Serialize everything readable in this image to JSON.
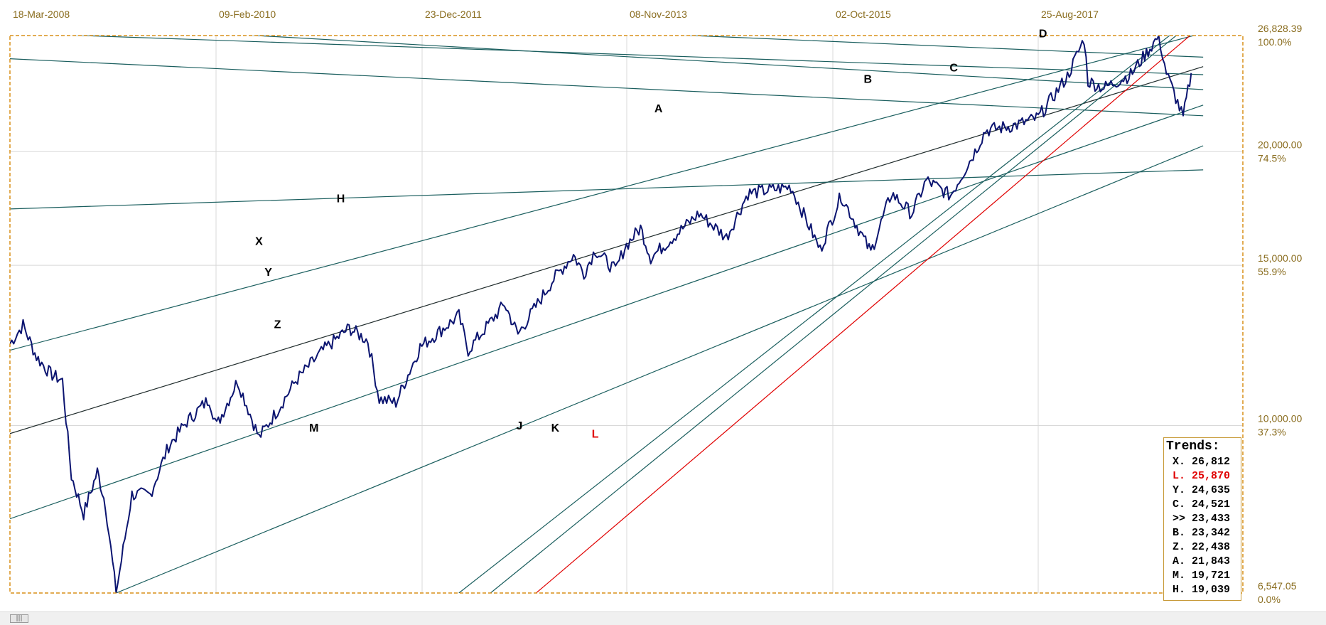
{
  "chart_data": {
    "type": "line",
    "x_axis": {
      "tick_labels": [
        "18-Mar-2008",
        "09-Feb-2010",
        "23-Dec-2011",
        "08-Nov-2013",
        "02-Oct-2015",
        "25-Aug-2017"
      ],
      "range": [
        "2008-03-18",
        "2019-03-01"
      ]
    },
    "y_axis": {
      "scale": "log",
      "range": [
        6547.05,
        26828.39
      ],
      "ticks": [
        {
          "value": "26,828.39",
          "pct": "100.0%"
        },
        {
          "value": "20,000.00",
          "pct": "74.5%"
        },
        {
          "value": "15,000.00",
          "pct": "55.9%"
        },
        {
          "value": "10,000.00",
          "pct": "37.3%"
        },
        {
          "value": "6,547.05",
          "pct": "0.0%"
        }
      ]
    },
    "grid": true,
    "series": [
      {
        "color": "#0b1470",
        "points": [
          [
            "2008-03-18",
            12300
          ],
          [
            "2008-05-01",
            12900
          ],
          [
            "2008-06-15",
            11900
          ],
          [
            "2008-08-01",
            11400
          ],
          [
            "2008-09-10",
            11200
          ],
          [
            "2008-10-10",
            8800
          ],
          [
            "2008-11-20",
            8000
          ],
          [
            "2009-01-05",
            8900
          ],
          [
            "2009-02-01",
            8200
          ],
          [
            "2009-03-09",
            6547
          ],
          [
            "2009-05-01",
            8400
          ],
          [
            "2009-07-01",
            8400
          ],
          [
            "2009-09-01",
            9500
          ],
          [
            "2009-11-01",
            10100
          ],
          [
            "2010-01-15",
            10700
          ],
          [
            "2010-02-09",
            10000
          ],
          [
            "2010-04-20",
            11200
          ],
          [
            "2010-07-01",
            9700
          ],
          [
            "2010-09-01",
            10400
          ],
          [
            "2010-11-01",
            11200
          ],
          [
            "2011-02-01",
            12100
          ],
          [
            "2011-04-29",
            12800
          ],
          [
            "2011-07-01",
            12400
          ],
          [
            "2011-08-08",
            10700
          ],
          [
            "2011-10-03",
            10600
          ],
          [
            "2011-12-23",
            12200
          ],
          [
            "2012-05-01",
            13200
          ],
          [
            "2012-06-01",
            12100
          ],
          [
            "2012-10-01",
            13600
          ],
          [
            "2012-11-15",
            12600
          ],
          [
            "2013-03-15",
            14500
          ],
          [
            "2013-05-20",
            15400
          ],
          [
            "2013-06-24",
            14700
          ],
          [
            "2013-08-01",
            15600
          ],
          [
            "2013-10-08",
            14800
          ],
          [
            "2013-11-08",
            15700
          ],
          [
            "2013-12-31",
            16500
          ],
          [
            "2014-02-03",
            15300
          ],
          [
            "2014-07-15",
            17100
          ],
          [
            "2014-10-15",
            16100
          ],
          [
            "2014-12-26",
            18000
          ],
          [
            "2015-05-19",
            18300
          ],
          [
            "2015-08-25",
            15600
          ],
          [
            "2015-11-03",
            17900
          ],
          [
            "2016-02-11",
            15500
          ],
          [
            "2016-04-20",
            18000
          ],
          [
            "2016-06-27",
            17100
          ],
          [
            "2016-08-15",
            18600
          ],
          [
            "2016-11-04",
            17900
          ],
          [
            "2017-01-25",
            20000
          ],
          [
            "2017-03-01",
            21100
          ],
          [
            "2017-06-15",
            21400
          ],
          [
            "2017-08-25",
            21800
          ],
          [
            "2017-12-01",
            24200
          ],
          [
            "2018-01-26",
            26600
          ],
          [
            "2018-02-08",
            23900
          ],
          [
            "2018-04-02",
            23500
          ],
          [
            "2018-07-01",
            24300
          ],
          [
            "2018-10-03",
            26800
          ],
          [
            "2018-10-29",
            24400
          ],
          [
            "2018-12-24",
            21800
          ],
          [
            "2019-01-20",
            24400
          ]
        ]
      }
    ],
    "trend_lines": [
      {
        "name": "X",
        "color": "#1a5e5e",
        "from": [
          "2008-03-18",
          12100
        ],
        "to": [
          "2019-03-01",
          27000
        ],
        "label_date": "2010-07-01"
      },
      {
        "name": "Y",
        "color": "#1f2b2b",
        "from": [
          "2008-03-18",
          9800
        ],
        "to": [
          "2019-03-01",
          24800
        ],
        "label_date": "2010-08-15"
      },
      {
        "name": "Z",
        "color": "#1a5e5e",
        "from": [
          "2008-03-18",
          7900
        ],
        "to": [
          "2019-03-01",
          22500
        ],
        "label_date": "2010-09-01"
      },
      {
        "name": "M",
        "color": "#1a5e5e",
        "from": [
          "2009-03-09",
          6547
        ],
        "to": [
          "2019-03-01",
          20300
        ],
        "label_date": "2011-01-05"
      },
      {
        "name": "H",
        "color": "#1a5e5e",
        "from": [
          "2008-03-18",
          17300
        ],
        "to": [
          "2019-03-01",
          19100
        ],
        "label_date": "2011-04-15"
      },
      {
        "name": "A",
        "color": "#1a5e5e",
        "from": [
          "2008-03-18",
          25300
        ],
        "to": [
          "2019-03-01",
          21900
        ],
        "label_date": "2014-03-01"
      },
      {
        "name": "B",
        "color": "#1a5e5e",
        "from": [
          "2008-03-18",
          27800
        ],
        "to": [
          "2019-03-01",
          23400
        ],
        "label_date": "2016-02-01"
      },
      {
        "name": "C",
        "color": "#1a5e5e",
        "from": [
          "2008-03-18",
          27000
        ],
        "to": [
          "2019-03-01",
          24300
        ],
        "label_date": "2016-11-15"
      },
      {
        "name": "D",
        "color": "#1a5e5e",
        "from": [
          "2014-04-01",
          26900
        ],
        "to": [
          "2019-03-01",
          25400
        ],
        "label_date": "2017-09-15"
      },
      {
        "name": "J",
        "color": "#1a5e5e",
        "from": [
          "2012-05-01",
          6547
        ],
        "to": [
          "2018-12-20",
          27500
        ],
        "label_date": "2012-11-20"
      },
      {
        "name": "K",
        "color": "#1a5e5e",
        "from": [
          "2012-08-15",
          6547
        ],
        "to": [
          "2019-01-10",
          27500
        ],
        "label_date": "2013-03-20"
      },
      {
        "name": "L",
        "color": "#e00000",
        "from": [
          "2013-01-15",
          6547
        ],
        "to": [
          "2019-01-20",
          26900
        ],
        "label_date": "2013-07-15"
      }
    ],
    "labels_positions": {
      "X": [
        "2010-07-01",
        15800
      ],
      "Y": [
        "2010-08-01",
        14600
      ],
      "Z": [
        "2010-09-01",
        12800
      ],
      "M": [
        "2011-01-01",
        9850
      ],
      "H": [
        "2011-04-01",
        17600
      ],
      "A": [
        "2014-03-01",
        22100
      ],
      "B": [
        "2016-02-01",
        23800
      ],
      "C": [
        "2016-11-15",
        24500
      ],
      "D": [
        "2017-09-10",
        26700
      ],
      "J": [
        "2012-11-20",
        9900
      ],
      "K": [
        "2013-03-20",
        9850
      ],
      "L": [
        "2013-08-01",
        9700
      ]
    }
  },
  "trends_panel": {
    "title": "Trends:",
    "rows": [
      {
        "text": "X. 26,812",
        "color": "#000000"
      },
      {
        "text": "L. 25,870",
        "color": "#e00000"
      },
      {
        "text": "Y. 24,635",
        "color": "#000000"
      },
      {
        "text": "C. 24,521",
        "color": "#000000"
      },
      {
        "text": ">> 23,433",
        "color": "#000000"
      },
      {
        "text": "B. 23,342",
        "color": "#000000"
      },
      {
        "text": "Z. 22,438",
        "color": "#000000"
      },
      {
        "text": "A. 21,843",
        "color": "#000000"
      },
      {
        "text": "M. 19,721",
        "color": "#000000"
      },
      {
        "text": "H. 19,039",
        "color": "#000000"
      }
    ]
  },
  "scrollbar": {
    "thumb_glyph": "|||"
  },
  "colors": {
    "frame": "#d9901a",
    "grid": "#d8d8d8",
    "price": "#0b1470",
    "axis_text": "#8a6d1f"
  }
}
